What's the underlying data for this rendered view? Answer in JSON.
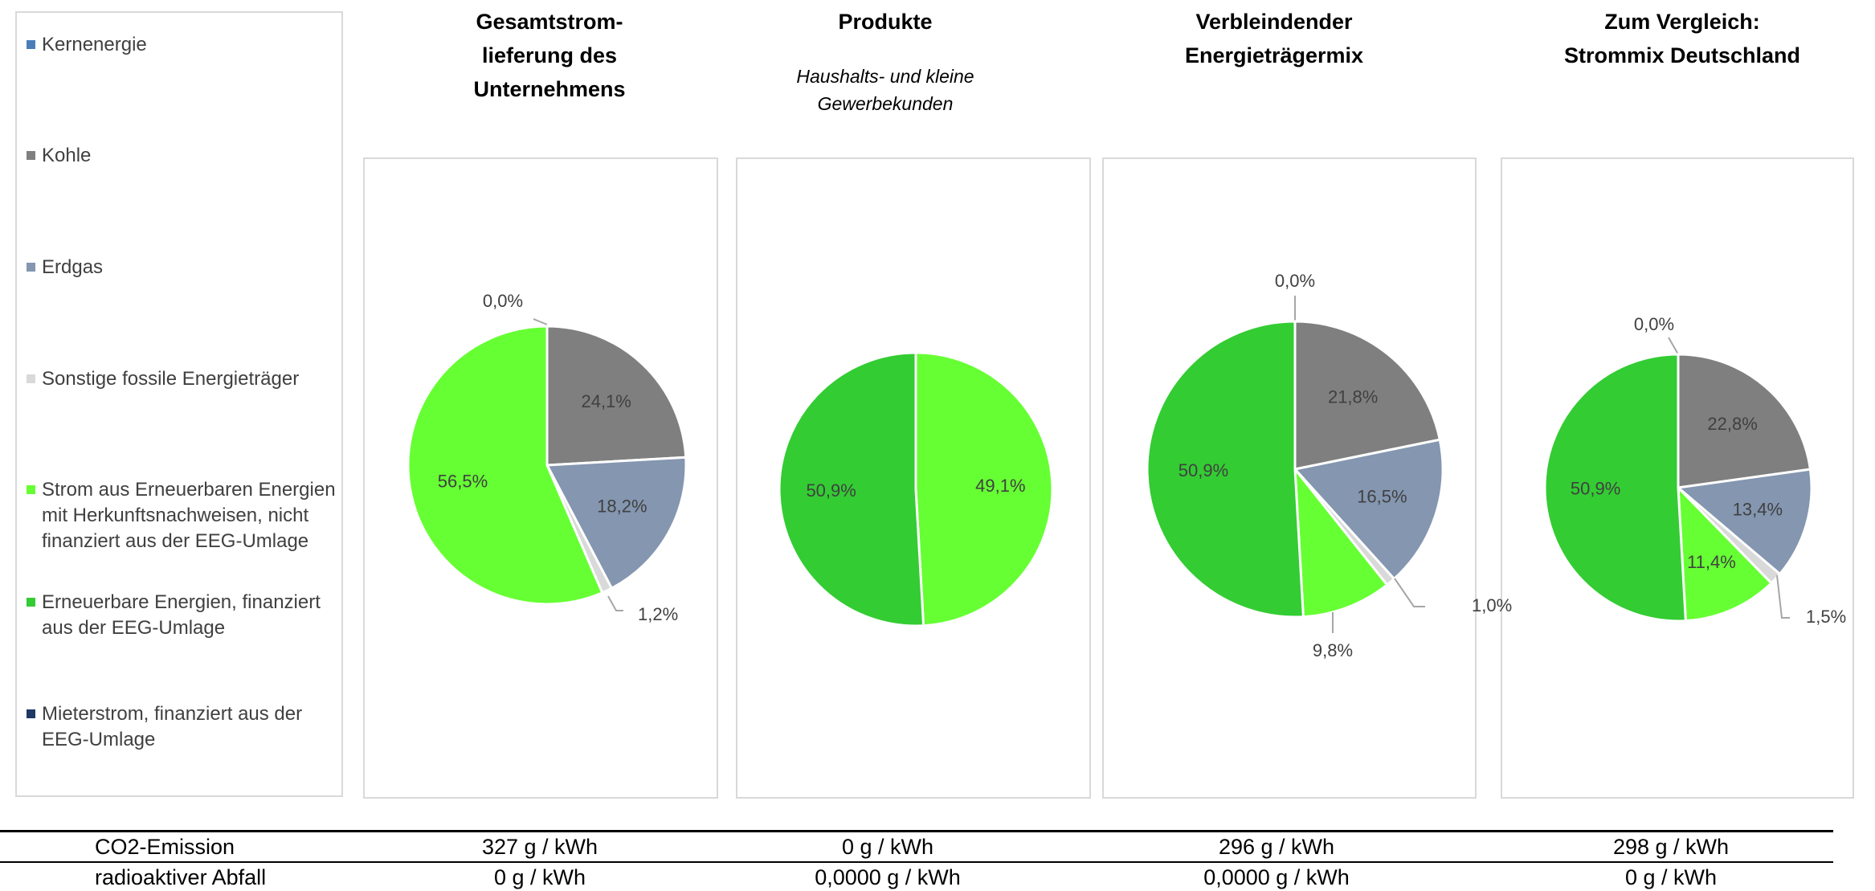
{
  "legend": [
    {
      "label": "Kernenergie",
      "color": "#4a7ebb"
    },
    {
      "label": "Kohle",
      "color": "#7f7f7f"
    },
    {
      "label": "Erdgas",
      "color": "#8496b0"
    },
    {
      "label": "Sonstige fossile Energieträger",
      "color": "#d9d9d9"
    },
    {
      "label": "Strom aus Erneuerbaren Energien mit Herkunftsnachweisen, nicht finanziert aus der EEG-Umlage",
      "lines": [
        "Strom aus Erneuerbaren Energien",
        "mit Herkunftsnachweisen, nicht",
        "finanziert aus der EEG-Umlage"
      ],
      "color": "#66ff33"
    },
    {
      "label": "Erneuerbare Energien, finanziert aus der EEG-Umlage",
      "lines": [
        "Erneuerbare Energien, finanziert",
        "aus der EEG-Umlage"
      ],
      "color": "#33cc33"
    },
    {
      "label": "Mieterstrom, finanziert aus der EEG-Umlage",
      "lines": [
        "Mieterstrom, finanziert aus der",
        "EEG-Umlage"
      ],
      "color": "#1f3864"
    }
  ],
  "columns": [
    {
      "title_lines": [
        "Gesamtstrom-",
        "lieferung des",
        "Unternehmens"
      ],
      "subtitle_lines": []
    },
    {
      "title_lines": [
        "Produkte"
      ],
      "subtitle_lines": [
        "Haushalts- und kleine",
        "Gewerbekunden"
      ]
    },
    {
      "title_lines": [
        "Verbleindender",
        "Energieträgermix"
      ],
      "subtitle_lines": []
    },
    {
      "title_lines": [
        "Zum Vergleich:",
        "Strommix Deutschland"
      ],
      "subtitle_lines": []
    }
  ],
  "chart_data": [
    {
      "type": "pie",
      "title": "Gesamtstromlieferung des Unternehmens",
      "categories": [
        "Kernenergie",
        "Kohle",
        "Erdgas",
        "Sonstige fossile Energieträger",
        "Strom aus Erneuerbaren Energien mit Herkunftsnachweisen, nicht finanziert aus der EEG-Umlage"
      ],
      "values": [
        0.0,
        24.1,
        18.2,
        1.2,
        56.5
      ],
      "labels": [
        "0,0%",
        "24,1%",
        "18,2%",
        "1,2%",
        "56,5%"
      ]
    },
    {
      "type": "pie",
      "title": "Produkte",
      "categories": [
        "Strom aus Erneuerbaren Energien mit Herkunftsnachweisen, nicht finanziert aus der EEG-Umlage",
        "Erneuerbare Energien, finanziert aus der EEG-Umlage"
      ],
      "values": [
        49.1,
        50.9
      ],
      "labels": [
        "49,1%",
        "50,9%"
      ]
    },
    {
      "type": "pie",
      "title": "Verbleindender Energieträgermix",
      "categories": [
        "Kernenergie",
        "Kohle",
        "Erdgas",
        "Sonstige fossile Energieträger",
        "Strom aus Erneuerbaren Energien mit Herkunftsnachweisen, nicht finanziert aus der EEG-Umlage",
        "Erneuerbare Energien, finanziert aus der EEG-Umlage"
      ],
      "values": [
        0.0,
        21.8,
        16.5,
        1.0,
        9.8,
        50.9
      ],
      "labels": [
        "0,0%",
        "21,8%",
        "16,5%",
        "1,0%",
        "9,8%",
        "50,9%"
      ]
    },
    {
      "type": "pie",
      "title": "Zum Vergleich: Strommix Deutschland",
      "categories": [
        "Kernenergie",
        "Kohle",
        "Erdgas",
        "Sonstige fossile Energieträger",
        "Strom aus Erneuerbaren Energien mit Herkunftsnachweisen, nicht finanziert aus der EEG-Umlage",
        "Erneuerbare Energien, finanziert aus der EEG-Umlage"
      ],
      "values": [
        0.0,
        22.8,
        13.4,
        1.5,
        11.4,
        50.9
      ],
      "labels": [
        "0,0%",
        "22,8%",
        "13,4%",
        "1,5%",
        "11,4%",
        "50,9%"
      ]
    }
  ],
  "table": [
    {
      "label": "CO2-Emission",
      "values": [
        "327 g / kWh",
        "0 g / kWh",
        "296 g / kWh",
        "298 g / kWh"
      ]
    },
    {
      "label": "radioaktiver Abfall",
      "values": [
        "0 g / kWh",
        "0,0000 g / kWh",
        "0,0000 g / kWh",
        "0 g / kWh"
      ]
    }
  ]
}
